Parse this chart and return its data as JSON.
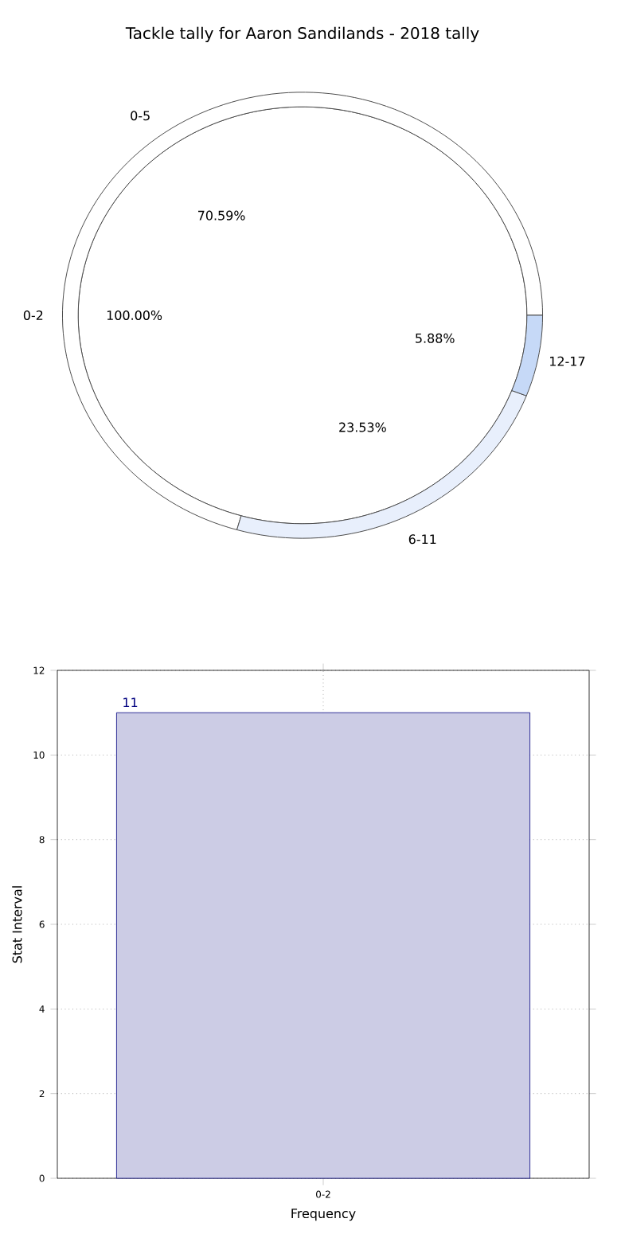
{
  "chart_data": [
    {
      "type": "pie",
      "title": "Tackle tally for Aaron Sandilands - 2018 tally",
      "categories": [
        "0-2"
      ],
      "values": [
        100
      ],
      "colors": [
        "#ffffff"
      ],
      "value_labels": [
        "100.00%"
      ]
    },
    {
      "type": "donut",
      "categories": [
        "0-5",
        "6-11",
        "12-17"
      ],
      "values": [
        70.59,
        23.53,
        5.88
      ],
      "colors": [
        "#ffffff",
        "#e8effc",
        "#c6d9f7"
      ],
      "value_labels": [
        "70.59%",
        "23.53%",
        "5.88%"
      ]
    },
    {
      "type": "bar",
      "categories": [
        "0-2"
      ],
      "values": [
        11
      ],
      "color": "#ccccE5",
      "ylim": [
        0,
        12
      ],
      "yticks": [
        0,
        2,
        4,
        6,
        8,
        10,
        12
      ],
      "grid": true,
      "xlabel": "Frequency",
      "ylabel": "Stat Interval",
      "data_labels": true
    }
  ]
}
